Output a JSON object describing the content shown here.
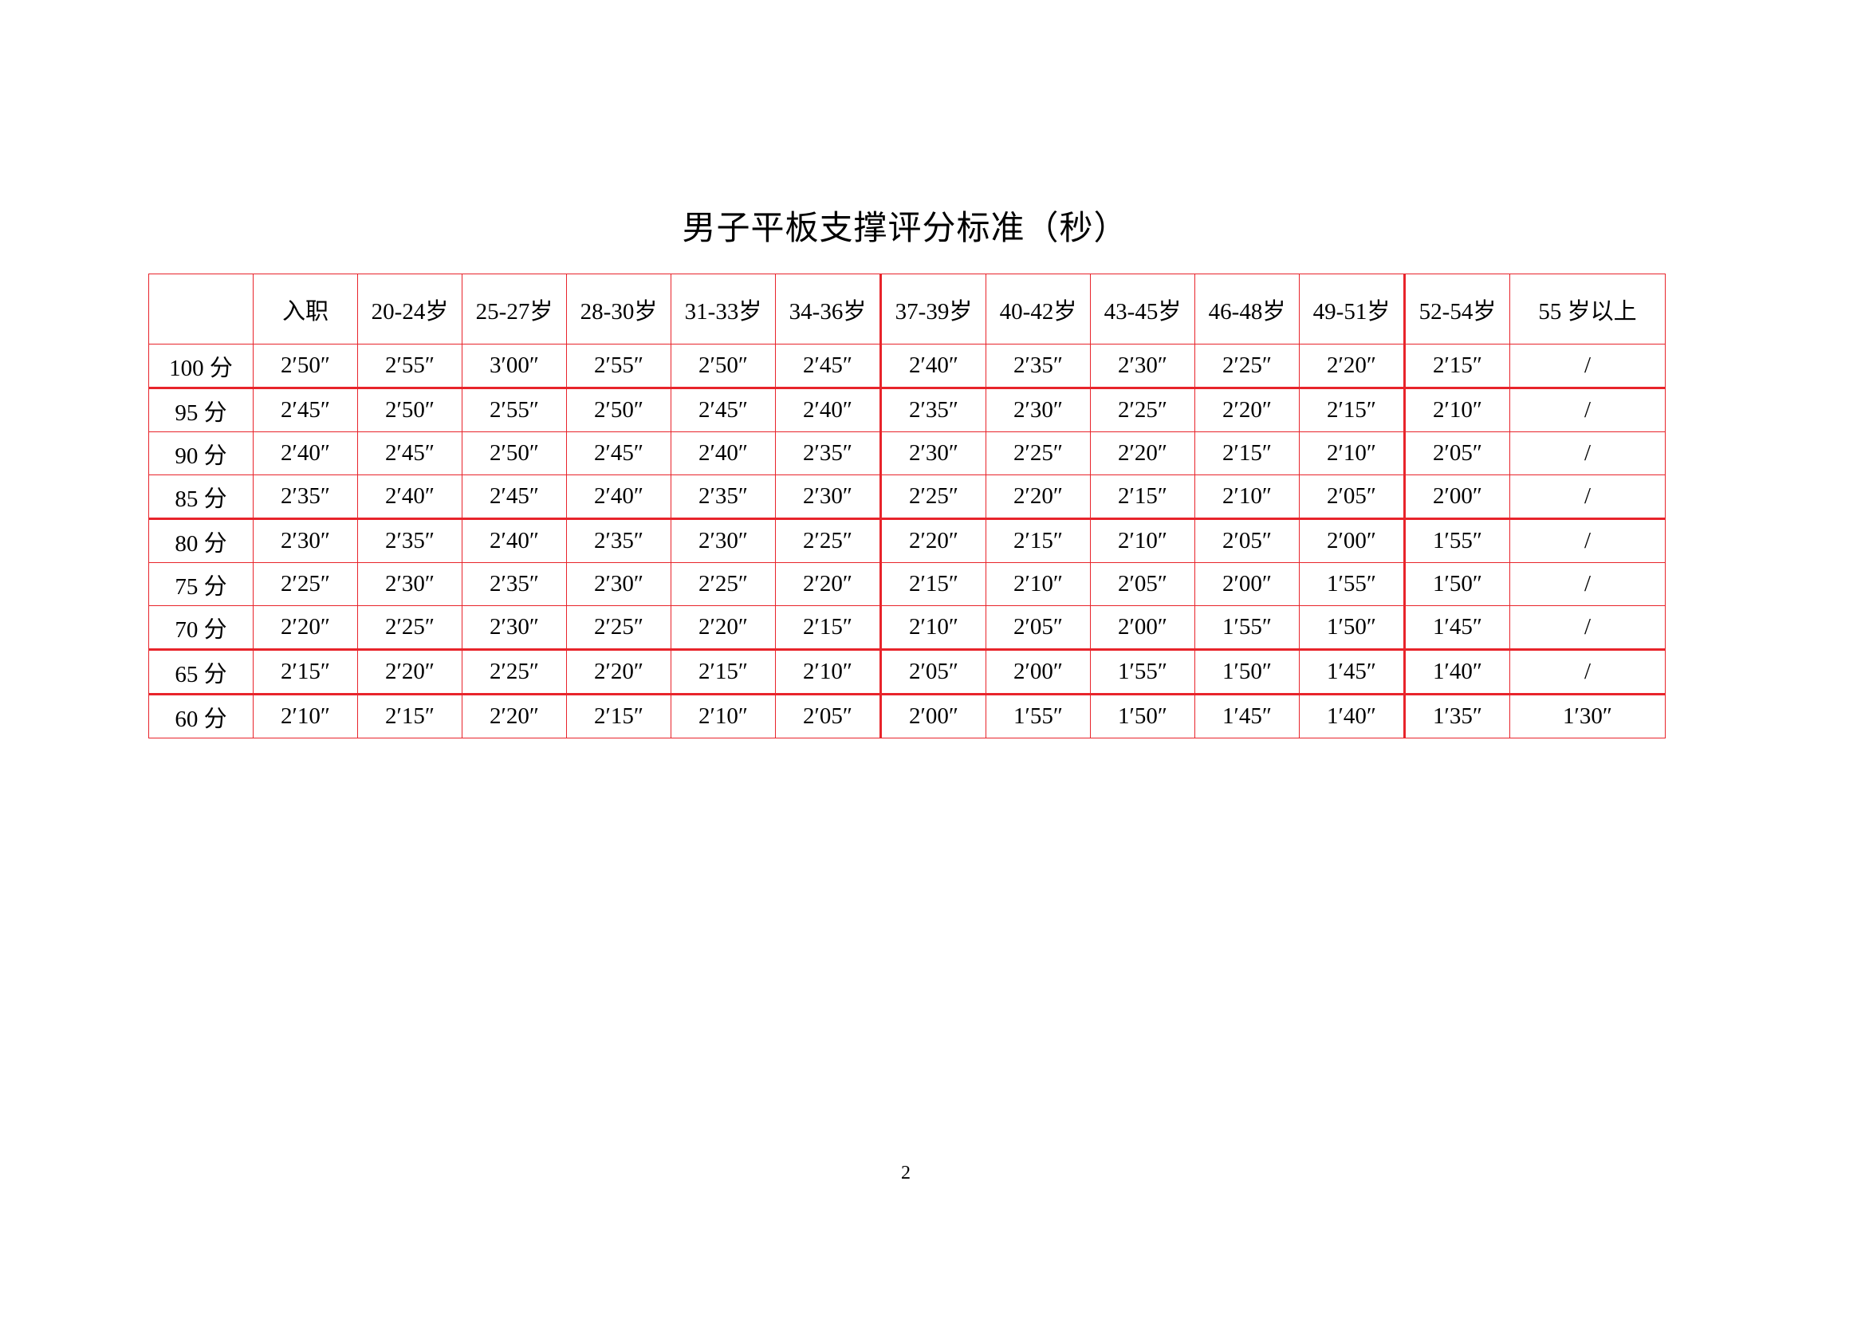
{
  "title": "男子平板支撑评分标准（秒）",
  "table": {
    "headers": [
      "",
      "入职",
      "20-24岁",
      "25-27岁",
      "28-30岁",
      "31-33岁",
      "34-36岁",
      "37-39岁",
      "40-42岁",
      "43-45岁",
      "46-48岁",
      "49-51岁",
      "52-54岁",
      "55 岁以上"
    ],
    "rows": [
      [
        "100 分",
        "2′50″",
        "2′55″",
        "3′00″",
        "2′55″",
        "2′50″",
        "2′45″",
        "2′40″",
        "2′35″",
        "2′30″",
        "2′25″",
        "2′20″",
        "2′15″",
        "/"
      ],
      [
        "95 分",
        "2′45″",
        "2′50″",
        "2′55″",
        "2′50″",
        "2′45″",
        "2′40″",
        "2′35″",
        "2′30″",
        "2′25″",
        "2′20″",
        "2′15″",
        "2′10″",
        "/"
      ],
      [
        "90 分",
        "2′40″",
        "2′45″",
        "2′50″",
        "2′45″",
        "2′40″",
        "2′35″",
        "2′30″",
        "2′25″",
        "2′20″",
        "2′15″",
        "2′10″",
        "2′05″",
        "/"
      ],
      [
        "85 分",
        "2′35″",
        "2′40″",
        "2′45″",
        "2′40″",
        "2′35″",
        "2′30″",
        "2′25″",
        "2′20″",
        "2′15″",
        "2′10″",
        "2′05″",
        "2′00″",
        "/"
      ],
      [
        "80 分",
        "2′30″",
        "2′35″",
        "2′40″",
        "2′35″",
        "2′30″",
        "2′25″",
        "2′20″",
        "2′15″",
        "2′10″",
        "2′05″",
        "2′00″",
        "1′55″",
        "/"
      ],
      [
        "75 分",
        "2′25″",
        "2′30″",
        "2′35″",
        "2′30″",
        "2′25″",
        "2′20″",
        "2′15″",
        "2′10″",
        "2′05″",
        "2′00″",
        "1′55″",
        "1′50″",
        "/"
      ],
      [
        "70 分",
        "2′20″",
        "2′25″",
        "2′30″",
        "2′25″",
        "2′20″",
        "2′15″",
        "2′10″",
        "2′05″",
        "2′00″",
        "1′55″",
        "1′50″",
        "1′45″",
        "/"
      ],
      [
        "65 分",
        "2′15″",
        "2′20″",
        "2′25″",
        "2′20″",
        "2′15″",
        "2′10″",
        "2′05″",
        "2′00″",
        "1′55″",
        "1′50″",
        "1′45″",
        "1′40″",
        "/"
      ],
      [
        "60 分",
        "2′10″",
        "2′15″",
        "2′20″",
        "2′15″",
        "2′10″",
        "2′05″",
        "2′00″",
        "1′55″",
        "1′50″",
        "1′45″",
        "1′40″",
        "1′35″",
        "1′30″"
      ]
    ]
  },
  "page_number": "2",
  "colors": {
    "border": "#e8242b"
  }
}
